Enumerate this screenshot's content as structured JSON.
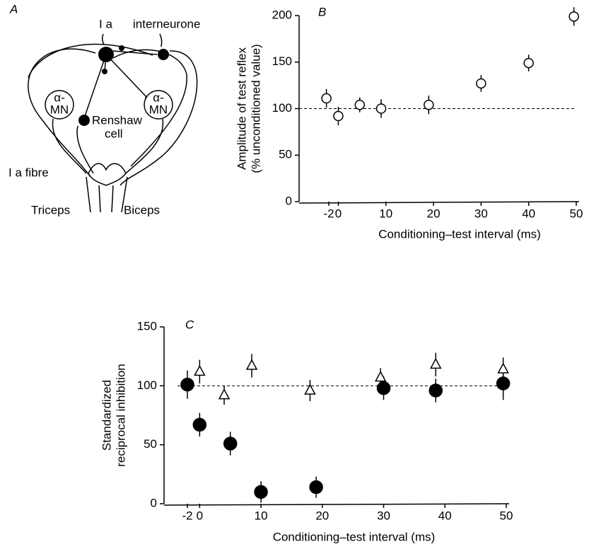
{
  "diagram": {
    "panel": "A",
    "ia": "I a",
    "interneurone": "interneurone",
    "mn_alpha": "α-",
    "mn": "MN",
    "renshaw": "Renshaw",
    "cell": "cell",
    "ia_fibre": "I a fibre",
    "triceps": "Triceps",
    "biceps": "Biceps"
  },
  "chart_data": [
    {
      "type": "scatter",
      "panel": "B",
      "y_label": [
        "Amplitude of test reflex",
        "(% unconditioned value)"
      ],
      "x_label": "Conditioning–test interval (ms)",
      "xlim": [
        -2,
        50
      ],
      "xticks": [
        -2,
        0,
        10,
        20,
        30,
        40,
        50
      ],
      "ylim": [
        0,
        200
      ],
      "yticks": [
        0,
        50,
        100,
        150,
        200
      ],
      "reference_line": 100,
      "series": [
        {
          "marker": "circle-open",
          "color": "#000000",
          "x": [
            -2.5,
            0,
            4.5,
            9,
            19,
            30,
            40,
            49.5
          ],
          "values": [
            111,
            92,
            104,
            100,
            104,
            127,
            149,
            199
          ],
          "errors": [
            10,
            10,
            8,
            10,
            10,
            9,
            9,
            10
          ]
        }
      ]
    },
    {
      "type": "scatter",
      "panel": "C",
      "y_label": [
        "Standardized",
        "reciprocal inhibition"
      ],
      "x_label": "Conditioning–test interval (ms)",
      "xlim": [
        -2,
        50
      ],
      "xticks": [
        -2,
        0,
        10,
        20,
        30,
        40,
        50
      ],
      "ylim": [
        0,
        150
      ],
      "yticks": [
        0,
        50,
        100,
        150
      ],
      "reference_line": 100,
      "series": [
        {
          "marker": "circle-filled",
          "color": "#000000",
          "x": [
            -2,
            0,
            5,
            10,
            19,
            30,
            38.5,
            49.5
          ],
          "values": [
            101,
            67,
            51,
            10,
            14,
            98,
            96,
            102
          ],
          "errors": [
            12,
            10,
            10,
            9,
            9,
            10,
            10,
            14
          ]
        },
        {
          "marker": "triangle-open",
          "color": "#000000",
          "x": [
            0,
            4,
            8.5,
            18,
            29.5,
            38.5,
            49.5
          ],
          "values": [
            112,
            92,
            117,
            96,
            107,
            118,
            114
          ],
          "errors": [
            10,
            8,
            10,
            9,
            8,
            10,
            10
          ]
        }
      ]
    }
  ]
}
